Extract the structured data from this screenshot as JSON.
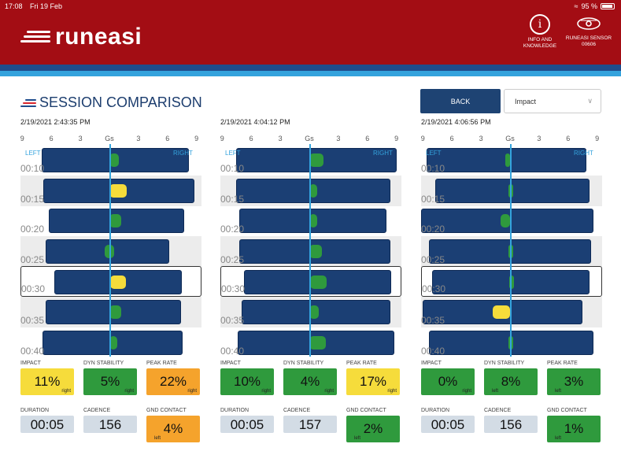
{
  "status_bar": {
    "time": "17:08",
    "date": "Fri 19 Feb",
    "battery": "95 %"
  },
  "header": {
    "logo_text": "runeasi",
    "info_button": {
      "label": "INFO AND KNOWLEDGE"
    },
    "sensor_button": {
      "label": "RUNEASI SENSOR",
      "id": "00606"
    }
  },
  "page": {
    "title": "SESSION COMPARISON",
    "back_label": "BACK",
    "metric_select": "Impact"
  },
  "colors": {
    "header_red": "#a30d14",
    "bar_blue": "#1b3f74",
    "accent_blue": "#34a3dd",
    "good": "#2f9a3d",
    "warn": "#f6dc3b",
    "bad": "#f5a32c"
  },
  "scale_labels": [
    "9",
    "6",
    "3",
    "Gs",
    "3",
    "6",
    "9"
  ],
  "side_labels": {
    "left": "LEFT",
    "right": "RIGHT"
  },
  "sessions": [
    {
      "date": "2/19/2021 2:43:35 PM",
      "rows": [
        {
          "time": "00:10",
          "bar_from": -7.0,
          "bar_to": 8.2,
          "marker_from": 0.0,
          "marker_to": 1.0,
          "status": "green"
        },
        {
          "time": "00:15",
          "bar_from": -6.8,
          "bar_to": 8.8,
          "marker_from": 0.0,
          "marker_to": 1.8,
          "status": "yellow"
        },
        {
          "time": "00:20",
          "bar_from": -6.3,
          "bar_to": 7.7,
          "marker_from": 0.0,
          "marker_to": 1.2,
          "status": "green"
        },
        {
          "time": "00:25",
          "bar_from": -6.6,
          "bar_to": 6.2,
          "marker_from": -0.5,
          "marker_to": 0.5,
          "status": "green"
        },
        {
          "time": "00:30",
          "bar_from": -5.8,
          "bar_to": 7.4,
          "marker_from": 0.0,
          "marker_to": 1.6,
          "status": "yellow",
          "selected": true
        },
        {
          "time": "00:35",
          "bar_from": -6.6,
          "bar_to": 7.4,
          "marker_from": 0.0,
          "marker_to": 1.2,
          "status": "green"
        },
        {
          "time": "00:40",
          "bar_from": -6.9,
          "bar_to": 7.6,
          "marker_from": 0.0,
          "marker_to": 0.8,
          "status": "green"
        }
      ],
      "metrics": {
        "impact": {
          "label": "IMPACT",
          "value": "11%",
          "side": "right",
          "status": "yellow"
        },
        "dyn_stability": {
          "label": "DYN STABILITY",
          "value": "5%",
          "side": "right",
          "status": "green"
        },
        "peak_rate": {
          "label": "PEAK RATE",
          "value": "22%",
          "side": "right",
          "status": "orange"
        },
        "duration": {
          "label": "DURATION",
          "value": "00:05"
        },
        "cadence": {
          "label": "CADENCE",
          "value": "156"
        },
        "gnd_contact": {
          "label": "GND CONTACT",
          "value": "4%",
          "side": "left",
          "status": "orange"
        }
      }
    },
    {
      "date": "2/19/2021 4:04:12 PM",
      "rows": [
        {
          "time": "00:10",
          "bar_from": -7.6,
          "bar_to": 9.0,
          "marker_from": 0.0,
          "marker_to": 1.5,
          "status": "green"
        },
        {
          "time": "00:15",
          "bar_from": -7.6,
          "bar_to": 8.4,
          "marker_from": 0.0,
          "marker_to": 0.8,
          "status": "green"
        },
        {
          "time": "00:20",
          "bar_from": -7.2,
          "bar_to": 8.0,
          "marker_from": 0.0,
          "marker_to": 0.8,
          "status": "green"
        },
        {
          "time": "00:25",
          "bar_from": -7.2,
          "bar_to": 8.4,
          "marker_from": 0.0,
          "marker_to": 1.3,
          "status": "green"
        },
        {
          "time": "00:30",
          "bar_from": -6.8,
          "bar_to": 8.4,
          "marker_from": 0.0,
          "marker_to": 1.7,
          "status": "green",
          "selected": true
        },
        {
          "time": "00:35",
          "bar_from": -7.0,
          "bar_to": 8.4,
          "marker_from": 0.0,
          "marker_to": 1.0,
          "status": "green"
        },
        {
          "time": "00:40",
          "bar_from": -7.4,
          "bar_to": 8.8,
          "marker_from": 0.0,
          "marker_to": 1.7,
          "status": "green"
        }
      ],
      "metrics": {
        "impact": {
          "label": "IMPACT",
          "value": "10%",
          "side": "right",
          "status": "green"
        },
        "dyn_stability": {
          "label": "DYN STABILITY",
          "value": "4%",
          "side": "right",
          "status": "green"
        },
        "peak_rate": {
          "label": "PEAK RATE",
          "value": "17%",
          "side": "right",
          "status": "yellow"
        },
        "duration": {
          "label": "DURATION",
          "value": "00:05"
        },
        "cadence": {
          "label": "CADENCE",
          "value": "157"
        },
        "gnd_contact": {
          "label": "GND CONTACT",
          "value": "2%",
          "side": "left",
          "status": "green"
        }
      }
    },
    {
      "date": "2/19/2021 4:06:56 PM",
      "rows": [
        {
          "time": "00:10",
          "bar_from": -8.6,
          "bar_to": 7.9,
          "marker_from": -0.5,
          "marker_to": 0.0,
          "status": "green"
        },
        {
          "time": "00:15",
          "bar_from": -7.7,
          "bar_to": 8.2,
          "marker_from": -0.2,
          "marker_to": 0.2,
          "status": "green"
        },
        {
          "time": "00:20",
          "bar_from": -9.2,
          "bar_to": 8.6,
          "marker_from": -1.0,
          "marker_to": 0.0,
          "status": "green"
        },
        {
          "time": "00:25",
          "bar_from": -8.4,
          "bar_to": 8.4,
          "marker_from": -0.2,
          "marker_to": 0.2,
          "status": "green"
        },
        {
          "time": "00:30",
          "bar_from": -8.1,
          "bar_to": 8.1,
          "marker_from": -0.2,
          "marker_to": 0.2,
          "status": "green",
          "selected": true
        },
        {
          "time": "00:35",
          "bar_from": -9.0,
          "bar_to": 7.5,
          "marker_from": -1.8,
          "marker_to": 0.0,
          "status": "yellow"
        },
        {
          "time": "00:40",
          "bar_from": -8.4,
          "bar_to": 8.6,
          "marker_from": -0.2,
          "marker_to": 0.2,
          "status": "green"
        }
      ],
      "metrics": {
        "impact": {
          "label": "IMPACT",
          "value": "0%",
          "side": "right",
          "status": "green"
        },
        "dyn_stability": {
          "label": "DYN STABILITY",
          "value": "8%",
          "side": "left",
          "status": "green"
        },
        "peak_rate": {
          "label": "PEAK RATE",
          "value": "3%",
          "side": "left",
          "status": "green"
        },
        "duration": {
          "label": "DURATION",
          "value": "00:05"
        },
        "cadence": {
          "label": "CADENCE",
          "value": "156"
        },
        "gnd_contact": {
          "label": "GND CONTACT",
          "value": "1%",
          "side": "left",
          "status": "green"
        }
      }
    }
  ]
}
